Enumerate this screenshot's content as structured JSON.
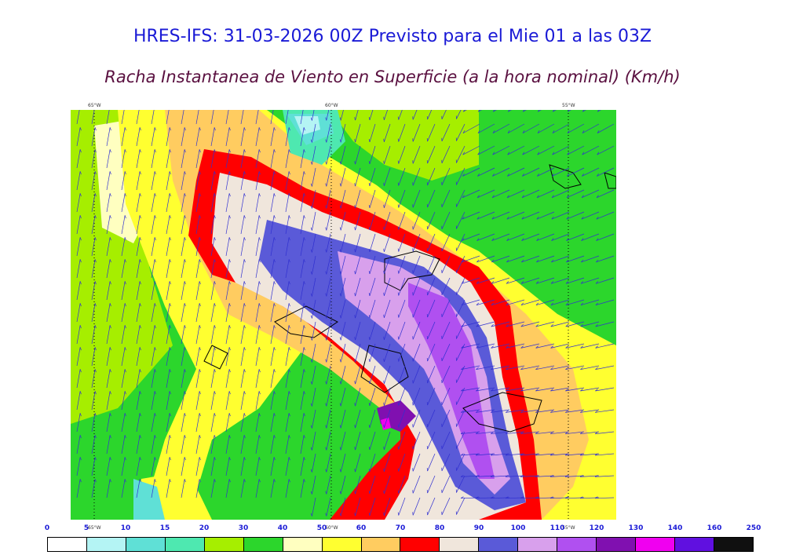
{
  "title": "HRES-IFS: 31-03-2026 00Z Previsto para el Mie 01 a las 03Z",
  "subtitle": "Racha Instantanea de Viento en Superficie (a la hora nominal) (Km/h)",
  "map": {
    "lon_labels": [
      "65°W",
      "60°W",
      "55°W"
    ],
    "wind_arrow_color": "#3030d0",
    "coastline_color": "#000000"
  },
  "legend": {
    "ticks": [
      "0",
      "5",
      "10",
      "15",
      "20",
      "30",
      "40",
      "50",
      "60",
      "70",
      "80",
      "90",
      "100",
      "110",
      "120",
      "130",
      "140",
      "160",
      "250"
    ],
    "colors": [
      "#ffffff",
      "#b4f4f4",
      "#5fe0d6",
      "#4ee8b0",
      "#a6ee00",
      "#2cd62c",
      "#ffffc0",
      "#ffff30",
      "#ffcc60",
      "#ff0000",
      "#f0e6dc",
      "#5a5ad8",
      "#d8a0ec",
      "#b050f0",
      "#8010b0",
      "#f000f0",
      "#6010e0",
      "#101010"
    ]
  }
}
